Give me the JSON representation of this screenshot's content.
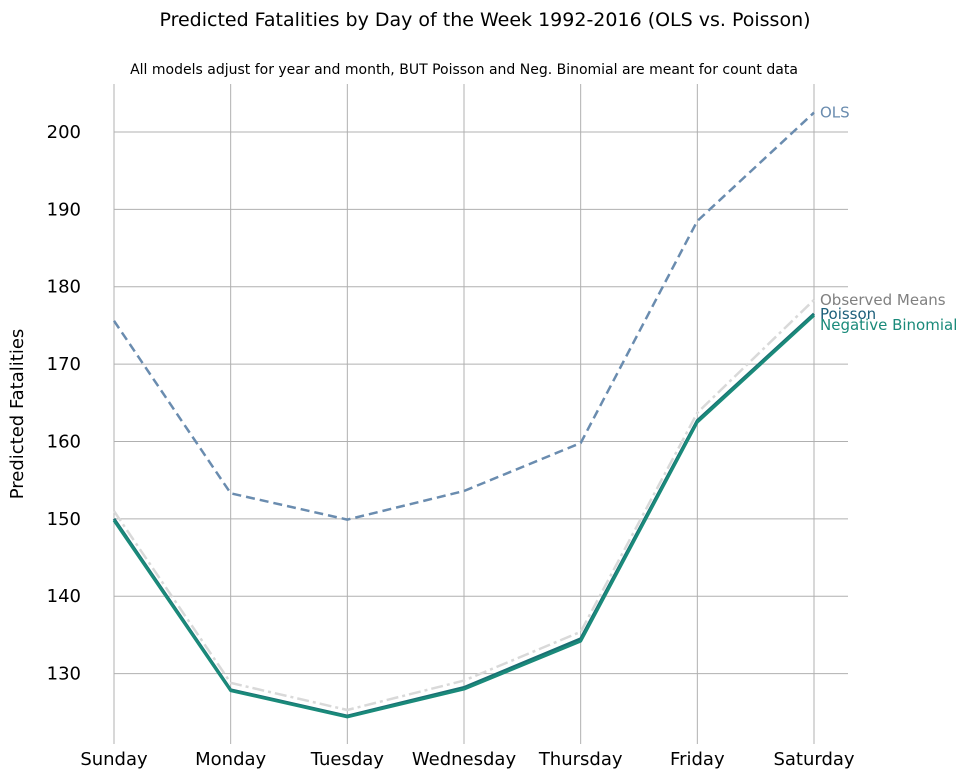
{
  "chart_data": {
    "type": "line",
    "title": "Predicted Fatalities by Day of the Week 1992-2016 (OLS vs. Poisson)",
    "subtitle": "All models adjust for year and month, BUT Poisson and Neg. Binomial are meant for count data",
    "xlabel": "",
    "ylabel": "Predicted Fatalities",
    "categories": [
      "Sunday",
      "Monday",
      "Tuesday",
      "Wednesday",
      "Thursday",
      "Friday",
      "Saturday"
    ],
    "ylim": [
      120.9,
      206.2
    ],
    "yticks": [
      130,
      140,
      150,
      160,
      170,
      180,
      190,
      200
    ],
    "grid": true,
    "legend": "direct labels at line ends",
    "series": [
      {
        "name": "OLS",
        "values": [
          175.6,
          153.3,
          149.9,
          153.6,
          159.8,
          188.5,
          202.5
        ],
        "color": "#6a8caf",
        "style": "dashed"
      },
      {
        "name": "Observed Means",
        "values": [
          151.0,
          128.8,
          125.3,
          129.1,
          135.4,
          163.7,
          178.3
        ],
        "color": "#d9d9d9",
        "style": "dashdot"
      },
      {
        "name": "Poisson",
        "values": [
          150.0,
          127.9,
          124.5,
          128.2,
          134.5,
          162.7,
          176.5
        ],
        "color": "#1b6f73",
        "style": "solid"
      },
      {
        "name": "Negative Binomial",
        "values": [
          149.8,
          127.8,
          124.4,
          128.0,
          134.2,
          162.5,
          176.3
        ],
        "color": "#1a8a7a",
        "style": "solid"
      }
    ]
  }
}
